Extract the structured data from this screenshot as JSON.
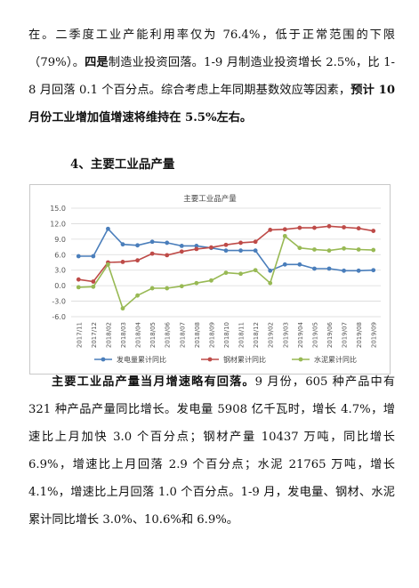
{
  "paragraph1": {
    "line1": "在。二季度工业产能利用率仅为 76.4%，低于正常范围的下限（79%）。",
    "bold_lead": "四是",
    "line2_rest": "制造业投资回落。1-9 月制造业投资增长 2.5%，比 1-8 月回落 0.1 个百分点。综合考虑上年同期基数效应等因素，",
    "bold_tail": "预计 10 月份工业增加值增速将维持在 5.5%左右。"
  },
  "section_heading": "4、主要工业品产量",
  "chart_data": {
    "type": "line",
    "title": "主要工业品产量",
    "x": [
      "2017/11",
      "2017/12",
      "2018/02",
      "2018/03",
      "2018/04",
      "2018/05",
      "2018/06",
      "2018/07",
      "2018/08",
      "2018/09",
      "2018/10",
      "2018/11",
      "2018/12",
      "2019/02",
      "2019/03",
      "2019/04",
      "2019/05",
      "2019/06",
      "2019/07",
      "2019/08",
      "2019/09"
    ],
    "yticks": [
      "15.0",
      "12.0",
      "9.0",
      "6.0",
      "3.0",
      "0.0",
      "-3.0",
      "-6.0"
    ],
    "ylim": [
      -6,
      15
    ],
    "grid": true,
    "legend": "bottom",
    "series": [
      {
        "name": "发电量累计同比",
        "color": "#4a7ebb",
        "values": [
          5.7,
          5.7,
          11.0,
          8.0,
          7.8,
          8.5,
          8.3,
          7.7,
          7.7,
          7.3,
          6.8,
          6.8,
          6.8,
          2.9,
          4.1,
          4.1,
          3.3,
          3.3,
          2.9,
          2.9,
          3.0
        ]
      },
      {
        "name": "钢材累计同比",
        "color": "#be4b48",
        "values": [
          1.2,
          0.8,
          4.5,
          4.6,
          4.9,
          6.2,
          5.9,
          6.6,
          7.1,
          7.4,
          7.9,
          8.3,
          8.5,
          10.8,
          10.9,
          11.2,
          11.2,
          11.5,
          11.3,
          11.1,
          10.6
        ]
      },
      {
        "name": "水泥累计同比",
        "color": "#98b954",
        "values": [
          -0.3,
          -0.2,
          4.1,
          -4.4,
          -1.9,
          -0.5,
          -0.5,
          -0.1,
          0.5,
          1.0,
          2.5,
          2.3,
          3.0,
          0.5,
          9.6,
          7.3,
          7.0,
          6.8,
          7.2,
          7.0,
          6.9
        ]
      }
    ]
  },
  "paragraph2": {
    "bold_lead": "主要工业品产量当月增速略有回落。",
    "text": "9 月份，605 种产品中有 321 种产品产量同比增长。发电量 5908 亿千瓦时，增长 4.7%，增速比上月加快 3.0 个百分点；钢材产量 10437 万吨，同比增长 6.9%，增速比上月回落 2.9 个百分点；水泥 21765 万吨，增长 4.1%，增速比上月回落 1.0 个百分点。1-9 月，发电量、钢材、水泥累计同比增长 3.0%、10.6%和 6.9%。"
  }
}
